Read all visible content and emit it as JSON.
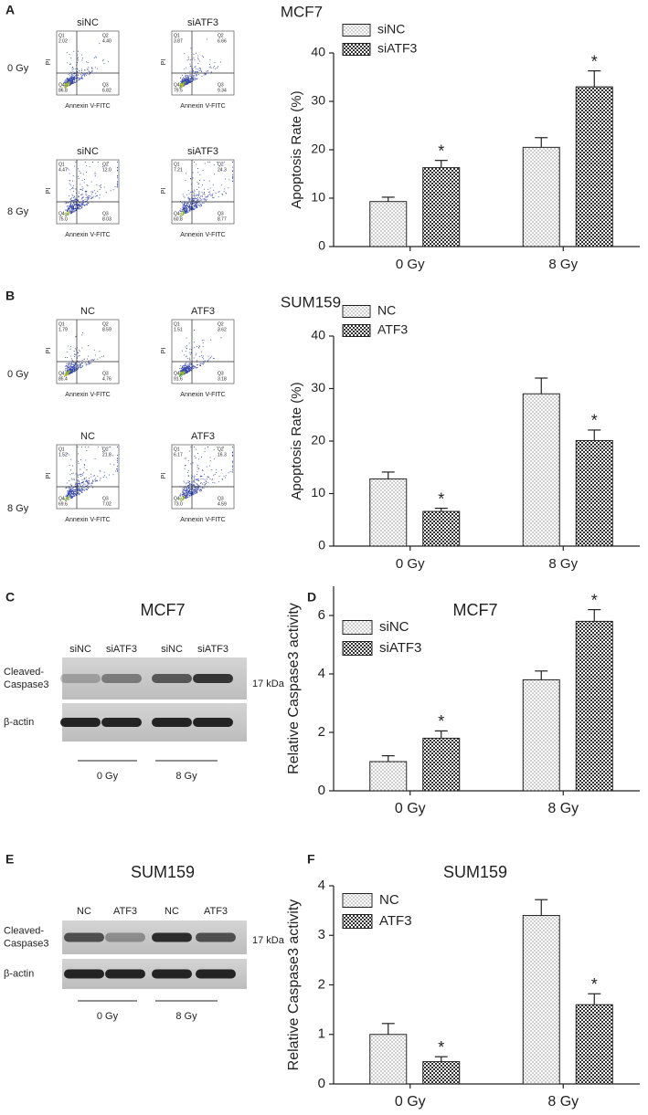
{
  "panel_labels": [
    "A",
    "B",
    "C",
    "D",
    "E",
    "F"
  ],
  "flow_panels": [
    {
      "title": "MCF7",
      "row_labels": [
        "0 Gy",
        "8 Gy"
      ],
      "x_label": "Annexin V-FITC",
      "y_label": "PI",
      "plots": [
        {
          "label": "siNC",
          "quadrants": [
            {
              "name": "Q1",
              "value": "2.02"
            },
            {
              "name": "Q2",
              "value": "4.40"
            },
            {
              "name": "Q3",
              "value": "6.82"
            },
            {
              "name": "Q4",
              "value": "86.8"
            }
          ]
        },
        {
          "label": "siATF3",
          "quadrants": [
            {
              "name": "Q1",
              "value": "3.87"
            },
            {
              "name": "Q2",
              "value": "6.66"
            },
            {
              "name": "Q3",
              "value": "9.34"
            },
            {
              "name": "Q4",
              "value": "79.5"
            }
          ]
        },
        {
          "label": "siNC",
          "quadrants": [
            {
              "name": "Q1",
              "value": "4.47"
            },
            {
              "name": "Q2",
              "value": "12.0"
            },
            {
              "name": "Q3",
              "value": "8.03"
            },
            {
              "name": "Q4",
              "value": "75.0"
            }
          ]
        },
        {
          "label": "siATF3",
          "quadrants": [
            {
              "name": "Q1",
              "value": "7.21"
            },
            {
              "name": "Q2",
              "value": "24.3"
            },
            {
              "name": "Q3",
              "value": "8.77"
            },
            {
              "name": "Q4",
              "value": "60.8"
            }
          ]
        }
      ]
    },
    {
      "title": "SUM159",
      "row_labels": [
        "0 Gy",
        "8 Gy"
      ],
      "x_label": "Annexin V-FITC",
      "y_label": "PI",
      "plots": [
        {
          "label": "NC",
          "quadrants": [
            {
              "name": "Q1",
              "value": "1.79"
            },
            {
              "name": "Q2",
              "value": "8.59"
            },
            {
              "name": "Q3",
              "value": "4.76"
            },
            {
              "name": "Q4",
              "value": "85.4"
            }
          ]
        },
        {
          "label": "ATF3",
          "quadrants": [
            {
              "name": "Q1",
              "value": "1.51"
            },
            {
              "name": "Q2",
              "value": "3.62"
            },
            {
              "name": "Q3",
              "value": "3.18"
            },
            {
              "name": "Q4",
              "value": "91.6"
            }
          ]
        },
        {
          "label": "NC",
          "quadrants": [
            {
              "name": "Q1",
              "value": "1.52"
            },
            {
              "name": "Q2",
              "value": "21.8"
            },
            {
              "name": "Q3",
              "value": "7.02"
            },
            {
              "name": "Q4",
              "value": "69.6"
            }
          ]
        },
        {
          "label": "ATF3",
          "quadrants": [
            {
              "name": "Q1",
              "value": "6.17"
            },
            {
              "name": "Q2",
              "value": "16.3"
            },
            {
              "name": "Q3",
              "value": "4.59"
            },
            {
              "name": "Q4",
              "value": "73.0"
            }
          ]
        }
      ]
    }
  ],
  "blots": [
    {
      "title": "MCF7",
      "lanes": [
        "siNC",
        "siATF3",
        "siNC",
        "siATF3"
      ],
      "row_labels": [
        [
          "Cleaved-",
          "Caspase3"
        ],
        [
          "β-actin"
        ]
      ],
      "size_label": "17 kDa",
      "groups": [
        "0 Gy",
        "8 Gy"
      ]
    },
    {
      "title": "SUM159",
      "lanes": [
        "NC",
        "ATF3",
        "NC",
        "ATF3"
      ],
      "row_labels": [
        [
          "Cleaved-",
          "Caspase3"
        ],
        [
          "β-actin"
        ]
      ],
      "size_label": "17 kDa",
      "groups": [
        "0 Gy",
        "8 Gy"
      ]
    }
  ],
  "chart_data": [
    {
      "type": "bar",
      "y_label": "Apoptosis Rate (%)",
      "categories": [
        "0 Gy",
        "8 Gy"
      ],
      "series": [
        {
          "name": "siNC",
          "pattern": "dots",
          "values": [
            9.3,
            20.5
          ],
          "errors": [
            0.9,
            2.0
          ],
          "annotations": [
            null,
            null
          ]
        },
        {
          "name": "siATF3",
          "pattern": "checker",
          "values": [
            16.3,
            33.0
          ],
          "errors": [
            1.5,
            3.3
          ],
          "annotations": [
            "*",
            "*"
          ]
        }
      ],
      "ylim": [
        0,
        40
      ],
      "yticks": [
        0,
        10,
        20,
        30,
        40
      ],
      "legend": "upper left"
    },
    {
      "type": "bar",
      "y_label": "Apoptosis Rate (%)",
      "categories": [
        "0 Gy",
        "8 Gy"
      ],
      "series": [
        {
          "name": "NC",
          "pattern": "dots",
          "values": [
            12.8,
            29.0
          ],
          "errors": [
            1.3,
            3.0
          ],
          "annotations": [
            null,
            null
          ]
        },
        {
          "name": "ATF3",
          "pattern": "checker",
          "values": [
            6.6,
            20.1
          ],
          "errors": [
            0.6,
            2.0
          ],
          "annotations": [
            "*",
            "*"
          ]
        }
      ],
      "ylim": [
        0,
        40
      ],
      "yticks": [
        0,
        10,
        20,
        30,
        40
      ],
      "legend": "upper left"
    },
    {
      "type": "bar",
      "title": "MCF7",
      "y_label": "Relative Caspase3 activity",
      "categories": [
        "0 Gy",
        "8 Gy"
      ],
      "series": [
        {
          "name": "siNC",
          "pattern": "dots",
          "values": [
            1.0,
            3.8
          ],
          "errors": [
            0.2,
            0.3
          ],
          "annotations": [
            null,
            null
          ]
        },
        {
          "name": "siATF3",
          "pattern": "checker",
          "values": [
            1.8,
            5.8
          ],
          "errors": [
            0.25,
            0.4
          ],
          "annotations": [
            "*",
            "*"
          ]
        }
      ],
      "ylim": [
        0,
        7
      ],
      "yticks": [
        0,
        2,
        4,
        6
      ],
      "legend": "upper left"
    },
    {
      "type": "bar",
      "title": "SUM159",
      "y_label": "Relative Caspase3 activity",
      "categories": [
        "0 Gy",
        "8 Gy"
      ],
      "series": [
        {
          "name": "NC",
          "pattern": "dots",
          "values": [
            1.0,
            3.4
          ],
          "errors": [
            0.22,
            0.32
          ],
          "annotations": [
            null,
            null
          ]
        },
        {
          "name": "ATF3",
          "pattern": "checker",
          "values": [
            0.45,
            1.6
          ],
          "errors": [
            0.1,
            0.22
          ],
          "annotations": [
            "*",
            "*"
          ]
        }
      ],
      "ylim": [
        0,
        4
      ],
      "yticks": [
        0,
        1,
        2,
        3,
        4
      ],
      "legend": "upper left"
    }
  ]
}
